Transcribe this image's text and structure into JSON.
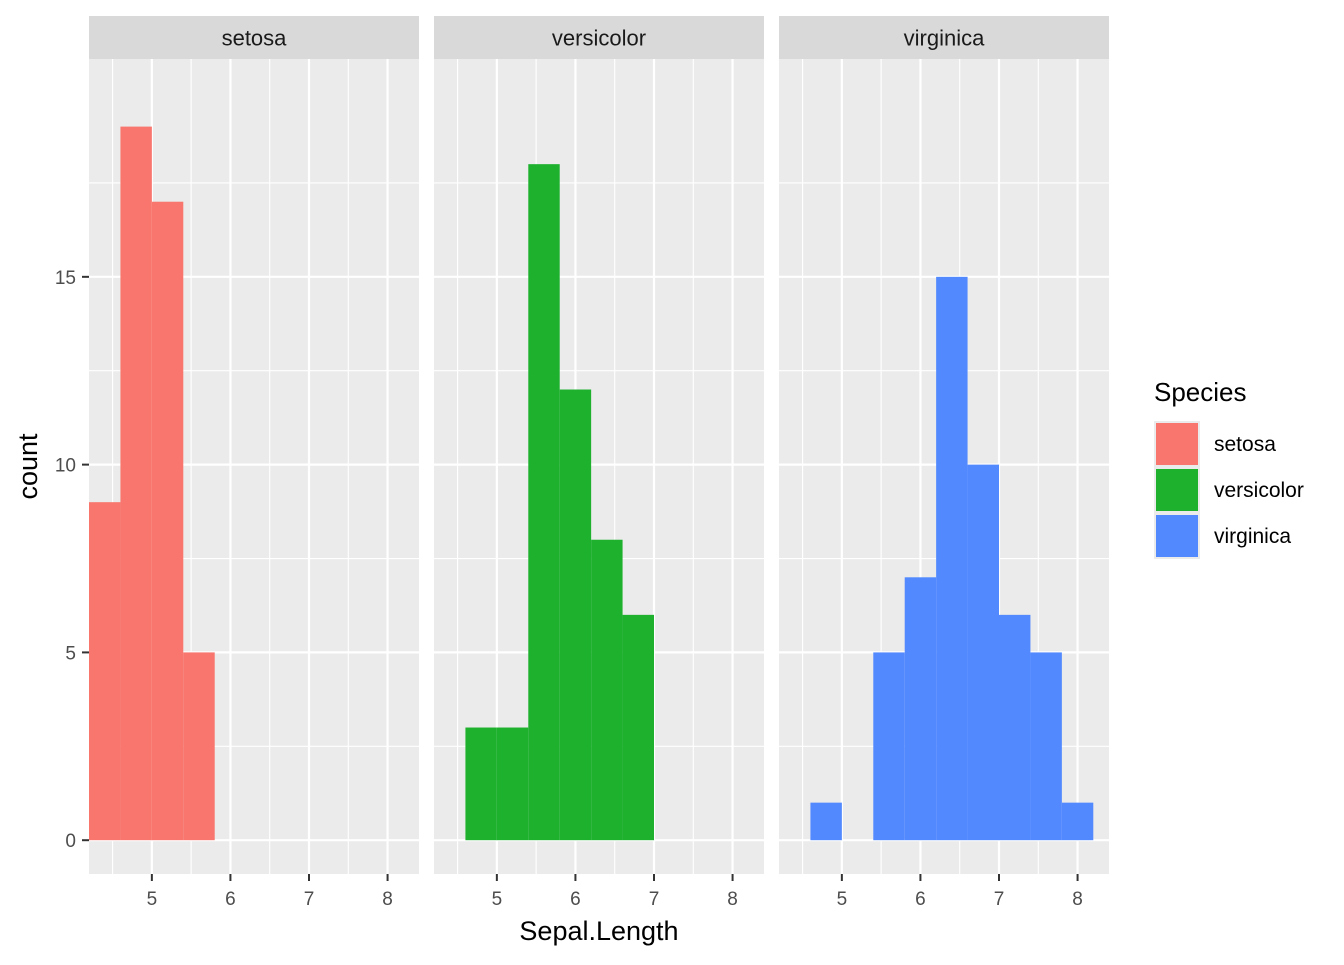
{
  "chart_data": {
    "type": "bar",
    "layout": "faceted histogram",
    "xlabel": "Sepal.Length",
    "ylabel": "count",
    "xlim": [
      4.2,
      8.4
    ],
    "ylim": [
      -0.9,
      20.8
    ],
    "x_ticks": [
      5,
      6,
      7,
      8
    ],
    "y_ticks": [
      0,
      5,
      10,
      15
    ],
    "x_tick_labels": [
      "5",
      "6",
      "7",
      "8"
    ],
    "y_tick_labels": [
      "0",
      "5",
      "10",
      "15"
    ],
    "bin_width": 0.4,
    "grid": true,
    "legend": {
      "title": "Species",
      "position": "right",
      "entries": [
        "setosa",
        "versicolor",
        "virginica"
      ]
    },
    "facets": [
      {
        "label": "setosa",
        "color": "#F8766D",
        "bins": [
          {
            "x0": 4.2,
            "x1": 4.6,
            "count": 9
          },
          {
            "x0": 4.6,
            "x1": 5.0,
            "count": 19
          },
          {
            "x0": 5.0,
            "x1": 5.4,
            "count": 17
          },
          {
            "x0": 5.4,
            "x1": 5.8,
            "count": 5
          }
        ]
      },
      {
        "label": "versicolor",
        "color": "#1DB12E",
        "bins": [
          {
            "x0": 4.6,
            "x1": 5.0,
            "count": 3
          },
          {
            "x0": 5.0,
            "x1": 5.4,
            "count": 3
          },
          {
            "x0": 5.4,
            "x1": 5.8,
            "count": 18
          },
          {
            "x0": 5.8,
            "x1": 6.2,
            "count": 12
          },
          {
            "x0": 6.2,
            "x1": 6.6,
            "count": 8
          },
          {
            "x0": 6.6,
            "x1": 7.0,
            "count": 6
          }
        ]
      },
      {
        "label": "virginica",
        "color": "#5289FF",
        "bins": [
          {
            "x0": 4.6,
            "x1": 5.0,
            "count": 1
          },
          {
            "x0": 5.4,
            "x1": 5.8,
            "count": 5
          },
          {
            "x0": 5.8,
            "x1": 6.2,
            "count": 7
          },
          {
            "x0": 6.2,
            "x1": 6.6,
            "count": 15
          },
          {
            "x0": 6.6,
            "x1": 7.0,
            "count": 10
          },
          {
            "x0": 7.0,
            "x1": 7.4,
            "count": 6
          },
          {
            "x0": 7.4,
            "x1": 7.8,
            "count": 5
          },
          {
            "x0": 7.8,
            "x1": 8.2,
            "count": 1
          }
        ]
      }
    ],
    "colors": {
      "panel_bg": "#EBEBEB",
      "strip_bg": "#D9D9D9",
      "grid": "#FFFFFF",
      "axis_text": "#4D4D4D",
      "tick": "#333333",
      "title_text": "#000000",
      "strip_text": "#1A1A1A"
    }
  }
}
